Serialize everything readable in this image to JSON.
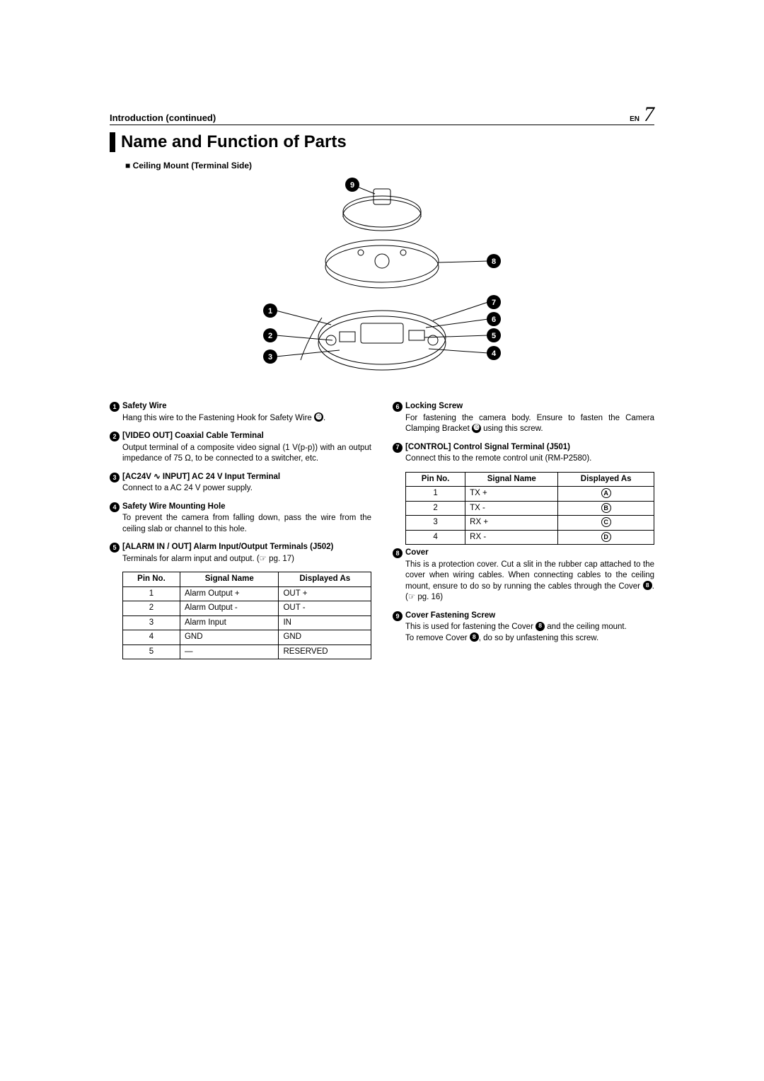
{
  "header": {
    "intro": "Introduction (continued)",
    "lang_label": "EN",
    "page_number": "7"
  },
  "section_title": "Name and Function of Parts",
  "subhead": "Ceiling Mount (Terminal Side)",
  "diagram": {
    "callouts": [
      "1",
      "2",
      "3",
      "4",
      "5",
      "6",
      "7",
      "8",
      "9"
    ],
    "stroke": "#000000",
    "fill_badge": "#000000"
  },
  "left_items": [
    {
      "num": "1",
      "title": "Safety Wire",
      "body_html": "Hang this wire to the Fastening Hook for Safety Wire <span class=\"callout-num-inline\">⓳</span>."
    },
    {
      "num": "2",
      "title": "[VIDEO OUT] Coaxial Cable Terminal",
      "body_html": "Output terminal of a composite video signal (1 V(p-p)) with an output impedance of 75 Ω, to be connected to a switcher, etc."
    },
    {
      "num": "3",
      "title": "[AC24V ∿ INPUT] AC 24 V Input Terminal",
      "body_html": "Connect to a AC 24 V power supply."
    },
    {
      "num": "4",
      "title": "Safety Wire Mounting Hole",
      "body_html": "To prevent the camera from falling down, pass the wire from the ceiling slab or channel to this hole."
    },
    {
      "num": "5",
      "title": "[ALARM IN / OUT] Alarm Input/Output Terminals (J502)",
      "body_html": "Terminals for alarm input and output. (☞ pg. 17)"
    }
  ],
  "alarm_table": {
    "headers": [
      "Pin No.",
      "Signal Name",
      "Displayed As"
    ],
    "rows": [
      [
        "1",
        "Alarm Output +",
        "OUT +"
      ],
      [
        "2",
        "Alarm Output -",
        "OUT -"
      ],
      [
        "3",
        "Alarm Input",
        "IN"
      ],
      [
        "4",
        "GND",
        "GND"
      ],
      [
        "5",
        "—",
        "RESERVED"
      ]
    ]
  },
  "right_items_a": [
    {
      "num": "6",
      "title": "Locking Screw",
      "body_html": "For fastening the camera body. Ensure to fasten the Camera Clamping Bracket <span class=\"callout-num-inline\">⓰</span> using this screw."
    },
    {
      "num": "7",
      "title": "[CONTROL] Control Signal Terminal (J501)",
      "body_html": "Connect this to the remote control unit (RM-P2580)."
    }
  ],
  "control_table": {
    "headers": [
      "Pin No.",
      "Signal Name",
      "Displayed As"
    ],
    "rows": [
      {
        "pin": "1",
        "name": "TX +",
        "disp": "A"
      },
      {
        "pin": "2",
        "name": "TX -",
        "disp": "B"
      },
      {
        "pin": "3",
        "name": "RX +",
        "disp": "C"
      },
      {
        "pin": "4",
        "name": "RX -",
        "disp": "D"
      }
    ]
  },
  "right_items_b": [
    {
      "num": "8",
      "title": "Cover",
      "body_html": "This is a protection cover. Cut a slit in the rubber cap attached to the cover when wiring cables. When connecting cables to the ceiling mount, ensure to do so by running the cables through the Cover <span class=\"callout-num-inline\">8</span>. (☞ pg. 16)"
    },
    {
      "num": "9",
      "title": "Cover Fastening Screw",
      "body_html": "This is used for fastening the Cover <span class=\"callout-num-inline\">8</span> and the ceiling mount.<br>To remove Cover <span class=\"callout-num-inline\">8</span>, do so by unfastening this screw."
    }
  ]
}
